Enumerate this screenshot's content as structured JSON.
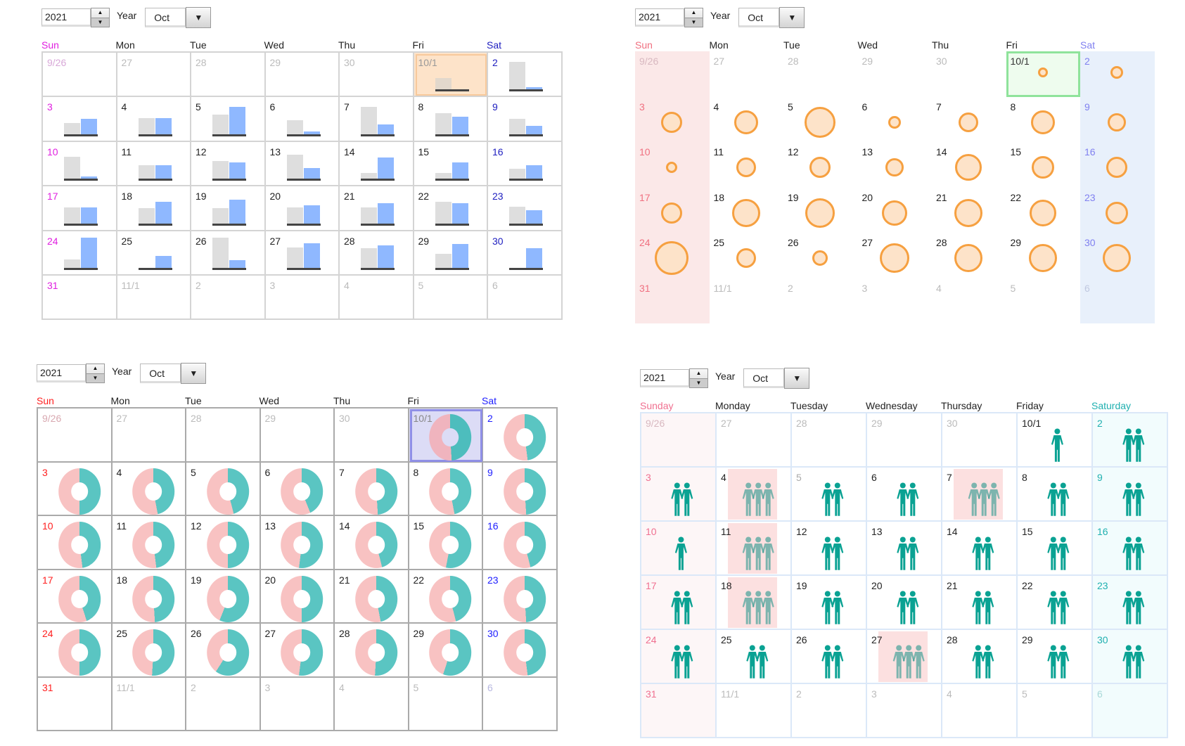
{
  "colors": {
    "bar_gray": "#dedede",
    "bar_blue": "#8fb8ff",
    "bubble_stroke": "#f6a040",
    "bubble_fill": "#fde3c9",
    "donut_pink": "#f8c2c2",
    "donut_teal": "#5ac5c2",
    "person_teal": "#0aa293",
    "sun_magenta": "#e020e0",
    "sun_red": "#ff2020",
    "sun_pink": "#f07080",
    "sat_blue": "#2020c0",
    "sat_light_blue": "#8080f0",
    "sat_teal": "#20b0b0"
  },
  "calendars": [
    {
      "id": "bar-calendar",
      "year": "2021",
      "year_label": "Year",
      "month": "Oct",
      "weekdays": [
        "Sun",
        "Mon",
        "Tue",
        "Wed",
        "Thu",
        "Fri",
        "Sat"
      ],
      "today": "10/1"
    },
    {
      "id": "bubble-calendar",
      "year": "2021",
      "year_label": "Year",
      "month": "Oct",
      "weekdays": [
        "Sun",
        "Mon",
        "Tue",
        "Wed",
        "Thu",
        "Fri",
        "Sat"
      ],
      "today": "10/1"
    },
    {
      "id": "donut-calendar",
      "year": "2021",
      "year_label": "Year",
      "month": "Oct",
      "weekdays": [
        "Sun",
        "Mon",
        "Tue",
        "Wed",
        "Thu",
        "Fri",
        "Sat"
      ],
      "today": "10/1"
    },
    {
      "id": "people-calendar",
      "year": "2021",
      "year_label": "Year",
      "month": "Oct",
      "weekdays": [
        "Sunday",
        "Monday",
        "Tuesday",
        "Wednesday",
        "Thursday",
        "Friday",
        "Saturday"
      ]
    }
  ],
  "days": [
    {
      "label": "9/26",
      "out": true
    },
    {
      "label": "27",
      "out": true
    },
    {
      "label": "28",
      "out": true
    },
    {
      "label": "29",
      "out": true
    },
    {
      "label": "30",
      "out": true
    },
    {
      "label": "10/1"
    },
    {
      "label": "2"
    },
    {
      "label": "3"
    },
    {
      "label": "4"
    },
    {
      "label": "5"
    },
    {
      "label": "6"
    },
    {
      "label": "7"
    },
    {
      "label": "8"
    },
    {
      "label": "9"
    },
    {
      "label": "10"
    },
    {
      "label": "11"
    },
    {
      "label": "12"
    },
    {
      "label": "13"
    },
    {
      "label": "14"
    },
    {
      "label": "15"
    },
    {
      "label": "16"
    },
    {
      "label": "17"
    },
    {
      "label": "18"
    },
    {
      "label": "19"
    },
    {
      "label": "20"
    },
    {
      "label": "21"
    },
    {
      "label": "22"
    },
    {
      "label": "23"
    },
    {
      "label": "24"
    },
    {
      "label": "25"
    },
    {
      "label": "26"
    },
    {
      "label": "27"
    },
    {
      "label": "28"
    },
    {
      "label": "29"
    },
    {
      "label": "30"
    },
    {
      "label": "31"
    },
    {
      "label": "11/1",
      "out": true
    },
    {
      "label": "2",
      "out": true
    },
    {
      "label": "3",
      "out": true
    },
    {
      "label": "4",
      "out": true
    },
    {
      "label": "5",
      "out": true
    },
    {
      "label": "6",
      "out": true
    }
  ],
  "chart_data": [
    {
      "type": "bar",
      "title": "Bar calendar (gray vs blue per day, relative heights 0-1)",
      "categories": [
        "10/1",
        "2",
        "3",
        "4",
        "5",
        "6",
        "7",
        "8",
        "9",
        "10",
        "11",
        "12",
        "13",
        "14",
        "15",
        "16",
        "17",
        "18",
        "19",
        "20",
        "21",
        "22",
        "23",
        "24",
        "25",
        "26",
        "27",
        "28",
        "29",
        "30"
      ],
      "series": [
        {
          "name": "gray",
          "values": [
            0.36,
            0.85,
            0.35,
            0.5,
            0.6,
            0.42,
            0.85,
            0.65,
            0.47,
            0.67,
            0.42,
            0.55,
            0.74,
            0.18,
            0.18,
            0.31,
            0.5,
            0.46,
            0.46,
            0.48,
            0.5,
            0.66,
            0.52,
            0.26,
            0.0,
            0.94,
            0.64,
            0.6,
            0.44,
            0.0
          ]
        },
        {
          "name": "blue",
          "values": [
            0.0,
            0.08,
            0.47,
            0.5,
            0.84,
            0.08,
            0.31,
            0.54,
            0.26,
            0.08,
            0.42,
            0.5,
            0.33,
            0.66,
            0.5,
            0.42,
            0.5,
            0.66,
            0.72,
            0.55,
            0.63,
            0.62,
            0.41,
            0.94,
            0.36,
            0.24,
            0.77,
            0.7,
            0.73,
            0.61
          ]
        }
      ]
    },
    {
      "type": "scatter",
      "title": "Bubble calendar (relative bubble diameter px)",
      "categories": [
        "10/1",
        "2",
        "3",
        "4",
        "5",
        "6",
        "7",
        "8",
        "9",
        "10",
        "11",
        "12",
        "13",
        "14",
        "15",
        "16",
        "17",
        "18",
        "19",
        "20",
        "21",
        "22",
        "23",
        "24",
        "25",
        "26",
        "27",
        "28",
        "29",
        "30"
      ],
      "values": [
        14,
        18,
        30,
        34,
        44,
        18,
        28,
        34,
        26,
        16,
        28,
        30,
        26,
        38,
        32,
        30,
        30,
        40,
        42,
        36,
        40,
        38,
        32,
        48,
        28,
        22,
        42,
        40,
        40,
        40
      ]
    },
    {
      "type": "pie",
      "title": "Donut calendar (teal share %, remainder pink)",
      "categories": [
        "10/1",
        "2",
        "3",
        "4",
        "5",
        "6",
        "7",
        "8",
        "9",
        "10",
        "11",
        "12",
        "13",
        "14",
        "15",
        "16",
        "17",
        "18",
        "19",
        "20",
        "21",
        "22",
        "23",
        "24",
        "25",
        "26",
        "27",
        "28",
        "29",
        "30"
      ],
      "values": [
        49,
        48,
        50,
        47,
        46,
        44,
        49,
        47,
        49,
        48,
        48,
        50,
        52,
        46,
        53,
        46,
        45,
        49,
        56,
        50,
        47,
        46,
        49,
        50,
        51,
        59,
        52,
        51,
        55,
        48
      ]
    },
    {
      "type": "table",
      "title": "People calendar (icon count per day; highlighted = faded 3-person on pink)",
      "categories": [
        "10/1",
        "2",
        "3",
        "4",
        "5",
        "6",
        "7",
        "8",
        "9",
        "10",
        "11",
        "12",
        "13",
        "14",
        "15",
        "16",
        "17",
        "18",
        "19",
        "20",
        "21",
        "22",
        "23",
        "24",
        "25",
        "26",
        "27",
        "28",
        "29",
        "30"
      ],
      "values": [
        1,
        2,
        2,
        3,
        2,
        2,
        3,
        2,
        2,
        1,
        3,
        2,
        2,
        2,
        2,
        2,
        2,
        3,
        2,
        2,
        2,
        2,
        2,
        2,
        2,
        2,
        3,
        2,
        2,
        2
      ],
      "highlighted": [
        "4",
        "7",
        "11",
        "18",
        "27"
      ]
    }
  ]
}
